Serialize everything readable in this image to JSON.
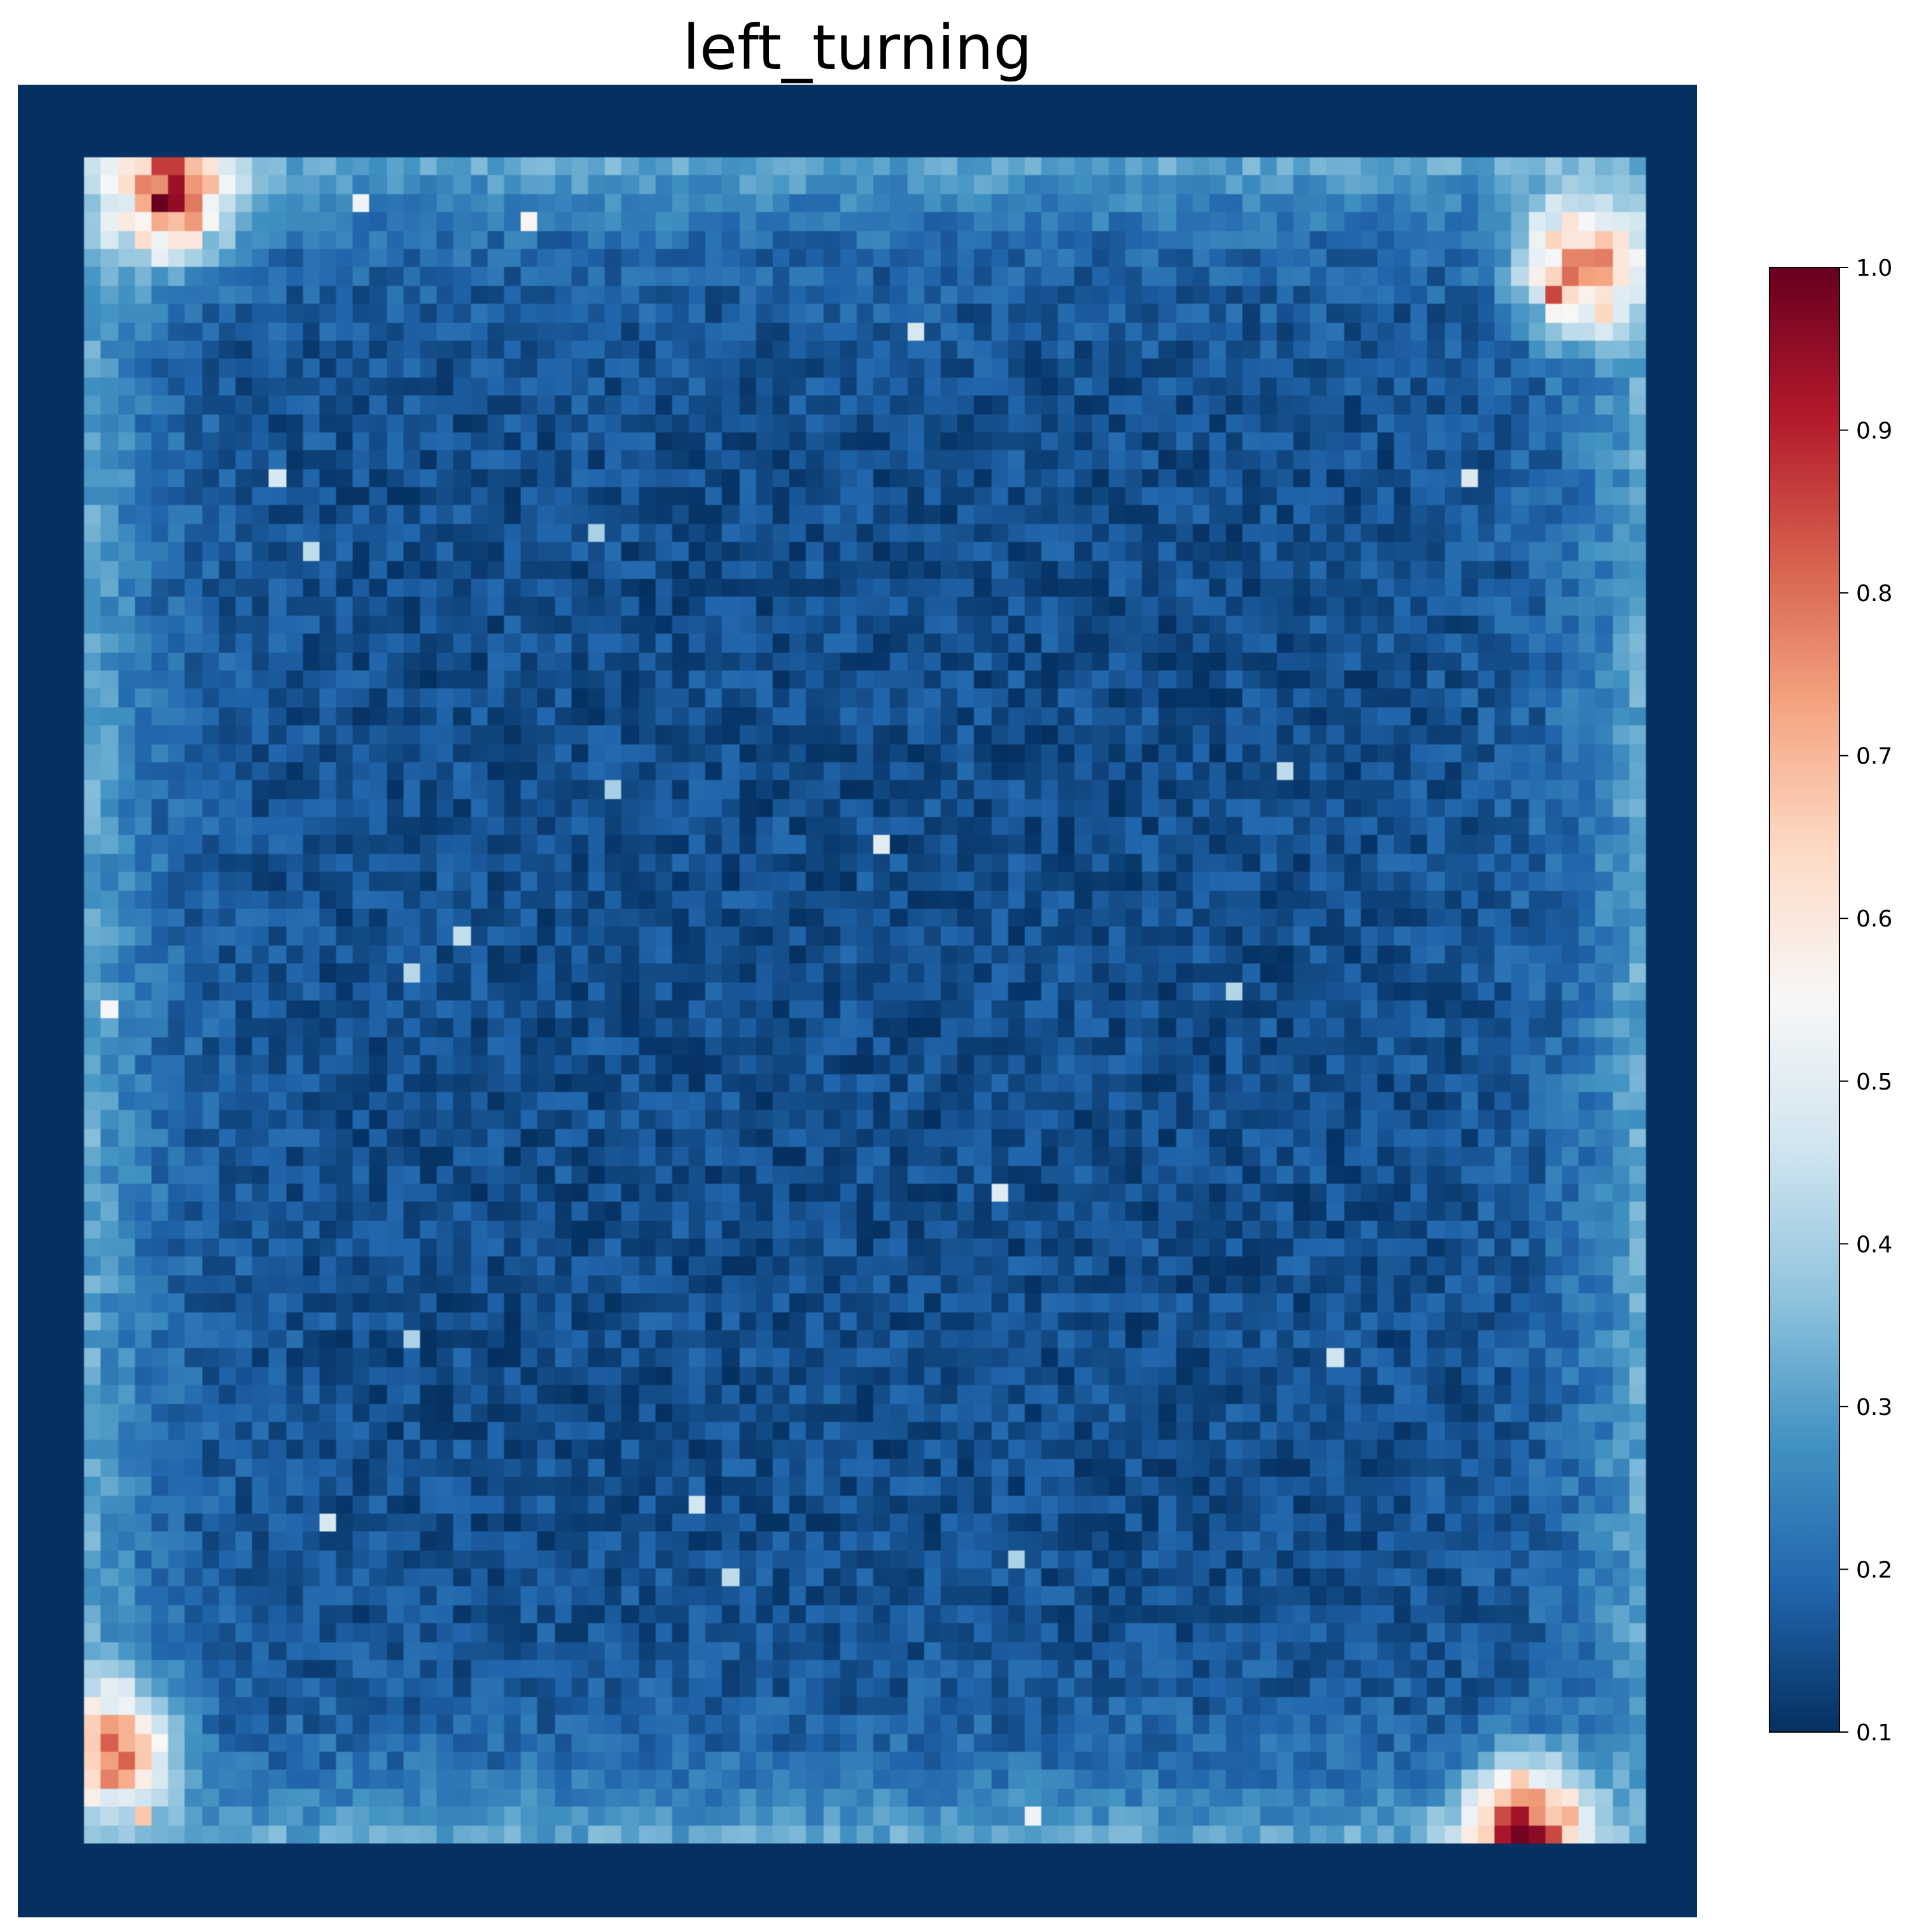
{
  "chart_data": {
    "type": "heatmap",
    "title": "left_turning",
    "grid": {
      "rows": 100,
      "cols": 100
    },
    "colormap": "RdBu_r",
    "colormap_stops": [
      "#053061",
      "#2166ac",
      "#4393c3",
      "#92c5de",
      "#d1e5f0",
      "#f7f7f7",
      "#fddbc7",
      "#f4a582",
      "#d6604d",
      "#b2182b",
      "#67001f"
    ],
    "value_range": [
      0.1,
      1.0
    ],
    "colorbar": {
      "ticks": [
        0.1,
        0.2,
        0.3,
        0.4,
        0.5,
        0.6,
        0.7,
        0.8,
        0.9,
        1.0
      ],
      "tick_labels": [
        "0.1",
        "0.2",
        "0.3",
        "0.4",
        "0.5",
        "0.6",
        "0.7",
        "0.8",
        "0.9",
        "1.0"
      ]
    },
    "pattern": {
      "outer_border_value": 0.1,
      "interior_base_value": 0.15,
      "edge_band_value": 0.3,
      "hotspots": [
        {
          "corner": "top-left",
          "peak": 1.0
        },
        {
          "corner": "top-right",
          "peak": 0.95
        },
        {
          "corner": "bottom-left",
          "peak": 0.85
        },
        {
          "corner": "bottom-right",
          "peak": 1.0
        }
      ]
    },
    "xticks": "none",
    "yticks": "none",
    "gridlines": false,
    "legend": "colorbar-right"
  }
}
